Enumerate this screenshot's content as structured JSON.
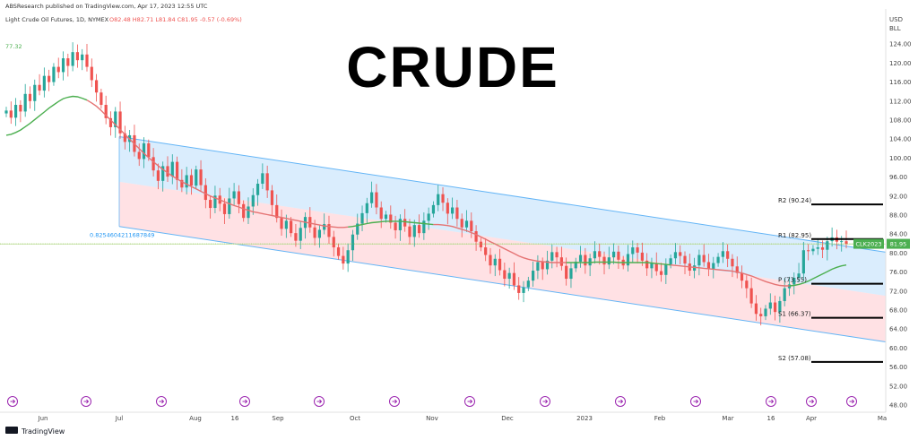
{
  "header": {
    "publisher": "ABSResearch published on TradingView.com, Apr 17, 2023 12:55 UTC",
    "instrument": "Light Crude Oil Futures, 1D, NYMEX",
    "ohlc": "O82.48  H82.71  L81.84  C81.95  -0.57 (-0.69%)",
    "left_marker": "77.32",
    "currency_1": "USD",
    "currency_2": "BLL"
  },
  "title": "CRUDE",
  "footer": {
    "brand": "TradingView"
  },
  "colors": {
    "bull": "#26a69a",
    "bear": "#ef5350",
    "ma_red": "#e57373",
    "ma_green": "#4caf50",
    "channel_top": "#bbdefb",
    "channel_bottom": "#ffcdd2",
    "channel_line": "#64b5f6",
    "fib": "#2196f3",
    "current_line": "#8bc34a",
    "price_badge": "#4caf50"
  },
  "chart_data": {
    "type": "candlestick",
    "x_ticks": [
      "Jun",
      "Jul",
      "Aug",
      "16",
      "Sep",
      "Oct",
      "Nov",
      "Dec",
      "2023",
      "Feb",
      "Mar",
      "16",
      "Apr",
      "Ma"
    ],
    "y_ticks": [
      "124.00",
      "120.00",
      "116.00",
      "112.00",
      "108.00",
      "104.00",
      "100.00",
      "96.00",
      "92.00",
      "88.00",
      "84.00",
      "80.00",
      "76.00",
      "72.00",
      "68.00",
      "64.00",
      "60.00",
      "56.00",
      "52.00",
      "48.00"
    ],
    "ylim": [
      46.5,
      129.5
    ],
    "current_price": 81.95,
    "current_label": "CLK2023",
    "current_value_label": "81.95",
    "fib_label": "0.8254604211687849",
    "fib_level": 81.9,
    "pivots": [
      {
        "name": "R2",
        "value": 90.24,
        "label": "R2 (90.24)"
      },
      {
        "name": "R1",
        "value": 82.95,
        "label": "R1 (82.95)"
      },
      {
        "name": "P",
        "value": 73.55,
        "label": "P (73.55)"
      },
      {
        "name": "S1",
        "value": 66.37,
        "label": "S1 (66.37)"
      },
      {
        "name": "S2",
        "value": 57.08,
        "label": "S2 (57.08)"
      }
    ],
    "series": [
      {
        "name": "closes",
        "values": [
          110.0,
          108.5,
          111.2,
          109.8,
          113.5,
          112.0,
          115.4,
          114.2,
          117.3,
          116.0,
          119.2,
          118.1,
          121.0,
          119.4,
          122.3,
          120.6,
          121.8,
          119.2,
          116.4,
          113.8,
          111.2,
          108.4,
          106.5,
          109.8,
          105.2,
          103.4,
          104.8,
          101.3,
          99.8,
          103.1,
          100.2,
          97.4,
          95.2,
          98.3,
          96.1,
          99.2,
          95.4,
          93.8,
          96.4,
          94.2,
          97.6,
          94.3,
          91.2,
          89.5,
          92.1,
          90.4,
          88.2,
          91.5,
          93.0,
          90.3,
          87.4,
          89.8,
          92.2,
          94.6,
          96.8,
          93.2,
          90.1,
          87.4,
          85.1,
          86.8,
          84.2,
          82.6,
          85.3,
          87.6,
          85.4,
          83.2,
          84.9,
          86.1,
          83.4,
          81.2,
          79.4,
          77.8,
          80.6,
          83.9,
          86.2,
          88.4,
          90.5,
          92.8,
          89.6,
          87.2,
          88.1,
          86.4,
          84.8,
          87.2,
          85.6,
          83.4,
          85.9,
          84.2,
          86.8,
          88.3,
          90.1,
          92.4,
          90.6,
          88.3,
          89.6,
          87.2,
          85.4,
          86.8,
          84.6,
          82.4,
          81.2,
          79.6,
          77.4,
          78.8,
          76.4,
          74.6,
          75.8,
          73.2,
          71.6,
          72.8,
          74.2,
          76.3,
          78.1,
          76.6,
          78.4,
          80.2,
          79.1,
          77.3,
          74.6,
          76.8,
          78.2,
          79.6,
          77.4,
          78.9,
          80.4,
          79.2,
          77.6,
          79.1,
          80.3,
          78.6,
          77.4,
          79.8,
          81.2,
          80.1,
          78.4,
          76.8,
          77.9,
          76.2,
          75.4,
          77.6,
          78.9,
          80.2,
          79.4,
          77.8,
          76.3,
          77.4,
          79.6,
          78.1,
          76.6,
          77.9,
          79.2,
          80.4,
          78.8,
          77.2,
          75.8,
          74.2,
          72.6,
          69.4,
          67.2,
          66.7,
          68.3,
          69.6,
          67.6,
          69.9,
          72.6,
          73.4,
          74.8,
          75.7,
          80.6,
          80.4,
          80.9,
          81.2,
          80.7,
          82.5,
          83.3,
          82.4,
          82.5,
          81.95
        ]
      },
      {
        "name": "ma",
        "values": [
          104.8,
          105.0,
          105.4,
          105.9,
          106.6,
          107.3,
          108.1,
          108.9,
          109.7,
          110.5,
          111.2,
          111.9,
          112.5,
          112.8,
          113.0,
          112.9,
          112.6,
          112.2,
          111.6,
          110.9,
          110.0,
          109.0,
          108.0,
          107.0,
          106.0,
          105.0,
          104.0,
          103.0,
          102.0,
          101.0,
          100.1,
          99.2,
          98.4,
          97.6,
          96.9,
          96.2,
          95.6,
          95.0,
          94.5,
          94.0,
          93.5,
          93.0,
          92.5,
          92.0,
          91.6,
          91.2,
          90.8,
          90.4,
          90.0,
          89.7,
          89.3,
          89.0,
          88.7,
          88.5,
          88.3,
          88.1,
          87.9,
          87.7,
          87.5,
          87.3,
          87.1,
          86.9,
          86.7,
          86.5,
          86.3,
          86.1,
          85.9,
          85.7,
          85.6,
          85.5,
          85.4,
          85.4,
          85.5,
          85.6,
          85.8,
          86.0,
          86.2,
          86.4,
          86.5,
          86.6,
          86.7,
          86.7,
          86.7,
          86.7,
          86.6,
          86.5,
          86.4,
          86.3,
          86.2,
          86.1,
          86.0,
          86.0,
          85.9,
          85.8,
          85.6,
          85.3,
          85.0,
          84.7,
          84.3,
          83.9,
          83.4,
          82.9,
          82.4,
          81.9,
          81.4,
          80.9,
          80.4,
          79.9,
          79.4,
          79.0,
          78.7,
          78.5,
          78.3,
          78.2,
          78.1,
          78.0,
          78.0,
          78.0,
          78.0,
          78.0,
          78.0,
          78.0,
          78.0,
          78.0,
          78.1,
          78.1,
          78.1,
          78.1,
          78.1,
          78.0,
          78.0,
          78.0,
          78.0,
          78.0,
          78.0,
          78.0,
          77.9,
          77.8,
          77.7,
          77.6,
          77.5,
          77.4,
          77.3,
          77.2,
          77.1,
          77.0,
          76.9,
          76.8,
          76.7,
          76.6,
          76.5,
          76.4,
          76.3,
          76.2,
          76.0,
          75.8,
          75.5,
          75.2,
          74.8,
          74.4,
          74.0,
          73.7,
          73.4,
          73.2,
          73.1,
          73.1,
          73.2,
          73.4,
          73.7,
          74.1,
          74.6,
          75.1,
          75.6,
          76.1,
          76.6,
          77.0,
          77.3,
          77.5
        ]
      }
    ],
    "channel": {
      "upper": {
        "start": 104.5,
        "end": 80.2
      },
      "middle": {
        "start": 95.0,
        "end": 71.0
      },
      "lower": {
        "start": 85.6,
        "end": 61.3
      }
    }
  }
}
